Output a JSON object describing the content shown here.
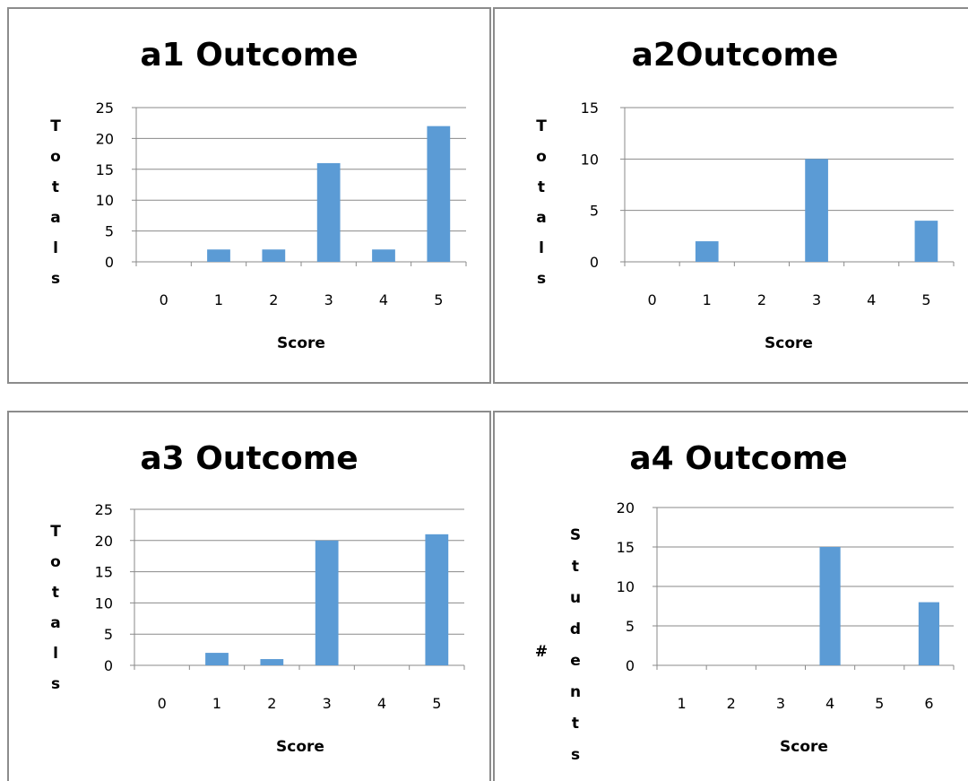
{
  "chart_data": [
    {
      "type": "bar",
      "title": "a1 Outcome",
      "xlabel": "Score",
      "ylabel": "Totals",
      "categories": [
        "0",
        "1",
        "2",
        "3",
        "4",
        "5"
      ],
      "values": [
        0,
        2,
        2,
        16,
        2,
        22
      ],
      "ylim": [
        0,
        25
      ],
      "yticks": [
        0,
        5,
        10,
        15,
        20,
        25
      ],
      "grid": true,
      "bar_color": "#5b9bd5"
    },
    {
      "type": "bar",
      "title": "a2Outcome",
      "xlabel": "Score",
      "ylabel": "Totals",
      "categories": [
        "0",
        "1",
        "2",
        "3",
        "4",
        "5"
      ],
      "values": [
        0,
        2,
        0,
        10,
        0,
        4
      ],
      "ylim": [
        0,
        15
      ],
      "yticks": [
        0,
        5,
        10,
        15
      ],
      "grid": true,
      "bar_color": "#5b9bd5"
    },
    {
      "type": "bar",
      "title": "a3 Outcome",
      "xlabel": "Score",
      "ylabel": "Totals",
      "categories": [
        "0",
        "1",
        "2",
        "3",
        "4",
        "5"
      ],
      "values": [
        0,
        2,
        1,
        20,
        0,
        21
      ],
      "ylim": [
        0,
        25
      ],
      "yticks": [
        0,
        5,
        10,
        15,
        20,
        25
      ],
      "grid": true,
      "bar_color": "#5b9bd5"
    },
    {
      "type": "bar",
      "title": "a4 Outcome",
      "xlabel": "Score",
      "ylabel": "# Students",
      "categories": [
        "1",
        "2",
        "3",
        "4",
        "5",
        "6"
      ],
      "values": [
        0,
        0,
        0,
        15,
        0,
        8
      ],
      "ylim": [
        0,
        20
      ],
      "yticks": [
        0,
        5,
        10,
        15,
        20
      ],
      "grid": true,
      "bar_color": "#5b9bd5"
    }
  ]
}
